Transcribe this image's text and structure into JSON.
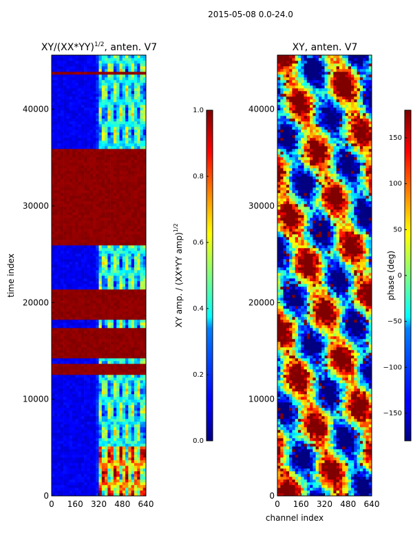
{
  "figure_title": "2015-05-08 0.0-24.0",
  "chart_data": [
    {
      "type": "heatmap",
      "title_main": "XY/(XX*YY)",
      "title_exp": "1/2",
      "title_suffix": ", anten. V7",
      "xlabel": "",
      "ylabel": "time index",
      "xlim": [
        0,
        640
      ],
      "ylim": [
        0,
        45600
      ],
      "xticks": [
        0,
        160,
        320,
        480,
        640
      ],
      "yticks": [
        0,
        10000,
        20000,
        30000,
        40000
      ],
      "colorbar": {
        "label_main": "XY amp. / (XX*YY amp)",
        "label_exp": "1/2",
        "range": [
          0.0,
          1.0
        ],
        "ticks": [
          "0.0",
          "0.2",
          "0.4",
          "0.6",
          "0.8",
          "1.0"
        ],
        "colormap": "jet"
      }
    },
    {
      "type": "heatmap",
      "title_main": "XY, anten. V7",
      "xlabel": "channel index",
      "ylabel": "",
      "xlim": [
        0,
        640
      ],
      "ylim": [
        0,
        45600
      ],
      "xticks": [
        0,
        160,
        320,
        480,
        640
      ],
      "yticks": [
        0,
        10000,
        20000,
        30000,
        40000
      ],
      "colorbar": {
        "label_main": "phase (deg)",
        "range": [
          -180,
          180
        ],
        "ticks": [
          "-150",
          "-100",
          "-50",
          "0",
          "50",
          "100",
          "150"
        ],
        "colormap": "jet"
      }
    }
  ]
}
